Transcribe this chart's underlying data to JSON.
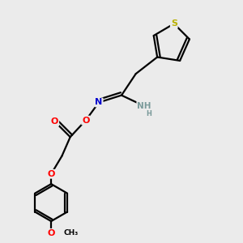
{
  "bg_color": "#ebebeb",
  "atom_colors": {
    "C": "#000000",
    "N": "#0000cd",
    "O": "#ff0000",
    "S": "#b8b000",
    "NH": "#7a9a9a"
  },
  "bond_color": "#000000",
  "bond_width": 1.6,
  "dbl_sep": 0.12
}
